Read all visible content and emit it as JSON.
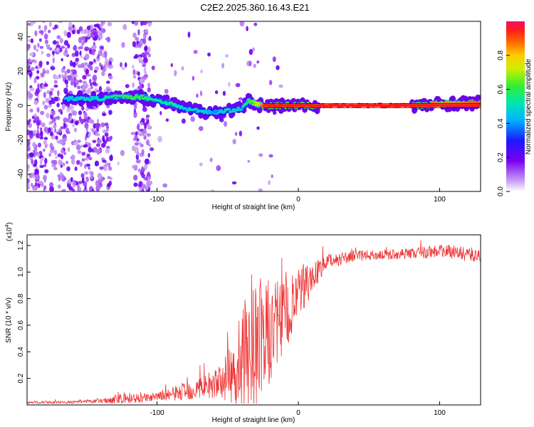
{
  "title": "C2E2.2025.360.16.43.E21",
  "chart_data": [
    {
      "type": "heatmap",
      "xlabel": "Height of straight line (km)",
      "ylabel": "Frequency (Hz)",
      "xlim": [
        -192,
        129
      ],
      "ylim": [
        -50,
        49
      ],
      "xticks": [
        -100,
        0,
        100
      ],
      "yticks": [
        -40,
        -20,
        0,
        20,
        40
      ],
      "colorbar": {
        "label": "Normalized spectral amplitude",
        "range": [
          0,
          1
        ],
        "ticks": [
          "0.0",
          "0.2",
          "0.4",
          "0.6",
          "0.8"
        ],
        "tick_values": [
          0.0,
          0.2,
          0.4,
          0.6,
          0.8
        ]
      },
      "ridge": {
        "x": [
          -160,
          -140,
          -130,
          -120,
          -110,
          -100,
          -90,
          -80,
          -70,
          -60,
          -50,
          -40,
          -35,
          -30,
          -25,
          -20,
          0,
          20,
          60,
          90,
          100,
          129
        ],
        "y": [
          4,
          4,
          5,
          5,
          5,
          3,
          1,
          -2,
          -3,
          -4,
          -3,
          -2,
          3,
          1,
          0,
          0,
          0,
          0,
          0,
          0,
          1,
          1.5
        ],
        "amplitude": [
          0.45,
          0.5,
          0.55,
          0.6,
          0.6,
          0.5,
          0.55,
          0.45,
          0.5,
          0.4,
          0.5,
          0.45,
          0.6,
          0.7,
          0.9,
          0.95,
          0.95,
          0.95,
          0.95,
          0.9,
          0.85,
          0.9
        ]
      }
    },
    {
      "type": "line",
      "xlabel": "Height of straight line (km)",
      "ylabel": "SNR (10 * v/v)",
      "yunit_label": "(x10",
      "yunit_exp": "4",
      "yunit_close": ")",
      "xlim": [
        -192,
        129
      ],
      "ylim": [
        0,
        1.28
      ],
      "xticks": [
        -100,
        0,
        100
      ],
      "yticks": [
        "0.2",
        "0.4",
        "0.6",
        "0.8",
        "1.0",
        "1.2"
      ],
      "ytick_values": [
        0.2,
        0.4,
        0.6,
        0.8,
        1.0,
        1.2
      ],
      "color": "#ee3333",
      "envelope": {
        "x": [
          -192,
          -160,
          -140,
          -120,
          -110,
          -100,
          -90,
          -80,
          -70,
          -60,
          -55,
          -50,
          -45,
          -40,
          -35,
          -30,
          -25,
          -20,
          -15,
          -10,
          -5,
          0,
          5,
          10,
          15,
          20,
          25,
          30,
          40,
          60,
          80,
          90,
          100,
          110,
          129
        ],
        "mean": [
          0.02,
          0.02,
          0.03,
          0.05,
          0.05,
          0.06,
          0.08,
          0.1,
          0.13,
          0.15,
          0.18,
          0.2,
          0.25,
          0.3,
          0.38,
          0.45,
          0.5,
          0.55,
          0.6,
          0.65,
          0.72,
          0.82,
          0.9,
          0.96,
          1.02,
          1.07,
          1.09,
          1.1,
          1.12,
          1.13,
          1.14,
          1.15,
          1.16,
          1.15,
          1.12
        ],
        "spread": [
          0.01,
          0.01,
          0.015,
          0.05,
          0.03,
          0.03,
          0.05,
          0.07,
          0.09,
          0.1,
          0.13,
          0.2,
          0.25,
          0.4,
          0.45,
          0.55,
          0.45,
          0.4,
          0.35,
          0.3,
          0.25,
          0.2,
          0.18,
          0.12,
          0.08,
          0.06,
          0.05,
          0.05,
          0.04,
          0.04,
          0.04,
          0.05,
          0.05,
          0.05,
          0.06
        ]
      }
    }
  ]
}
